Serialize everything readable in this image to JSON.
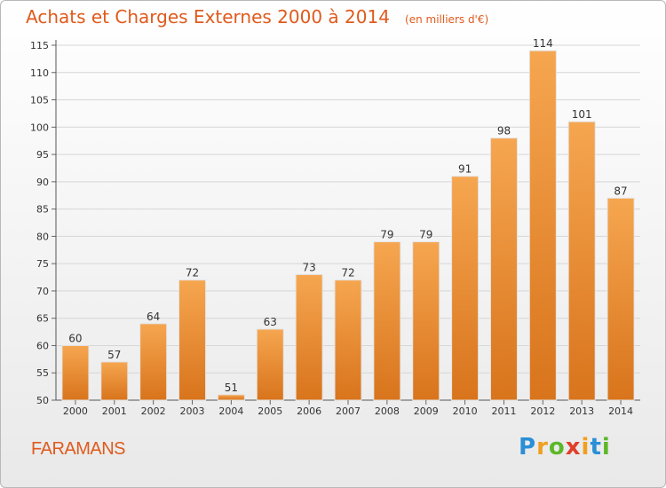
{
  "title": "Achats et Charges Externes 2000 à 2014",
  "unit_note": "(en milliers d'€)",
  "place": "FARAMANS",
  "logo": {
    "text": "Proxiti",
    "letters": [
      {
        "ch": "P",
        "color": "#2a8fd6"
      },
      {
        "ch": "r",
        "color": "#f0a020"
      },
      {
        "ch": "o",
        "color": "#5cb82a"
      },
      {
        "ch": "x",
        "color": "#e0402a"
      },
      {
        "ch": "i",
        "color": "#f0a020"
      },
      {
        "ch": "t",
        "color": "#2a8fd6"
      },
      {
        "ch": "i",
        "color": "#5cb82a"
      }
    ]
  },
  "colors": {
    "bar_top": "#f6a650",
    "bar_bottom": "#d8741c",
    "title": "#e05a1c"
  },
  "chart_data": {
    "type": "bar",
    "title": "Achats et Charges Externes 2000 à 2014",
    "xlabel": "",
    "ylabel": "",
    "categories": [
      "2000",
      "2001",
      "2002",
      "2003",
      "2004",
      "2005",
      "2006",
      "2007",
      "2008",
      "2009",
      "2010",
      "2011",
      "2012",
      "2013",
      "2014"
    ],
    "values": [
      60,
      57,
      64,
      72,
      51,
      63,
      73,
      72,
      79,
      79,
      91,
      98,
      114,
      101,
      87
    ],
    "ylim": [
      50,
      115
    ],
    "yticks": [
      50,
      55,
      60,
      65,
      70,
      75,
      80,
      85,
      90,
      95,
      100,
      105,
      110,
      115
    ],
    "grid": true,
    "data_labels": true
  }
}
